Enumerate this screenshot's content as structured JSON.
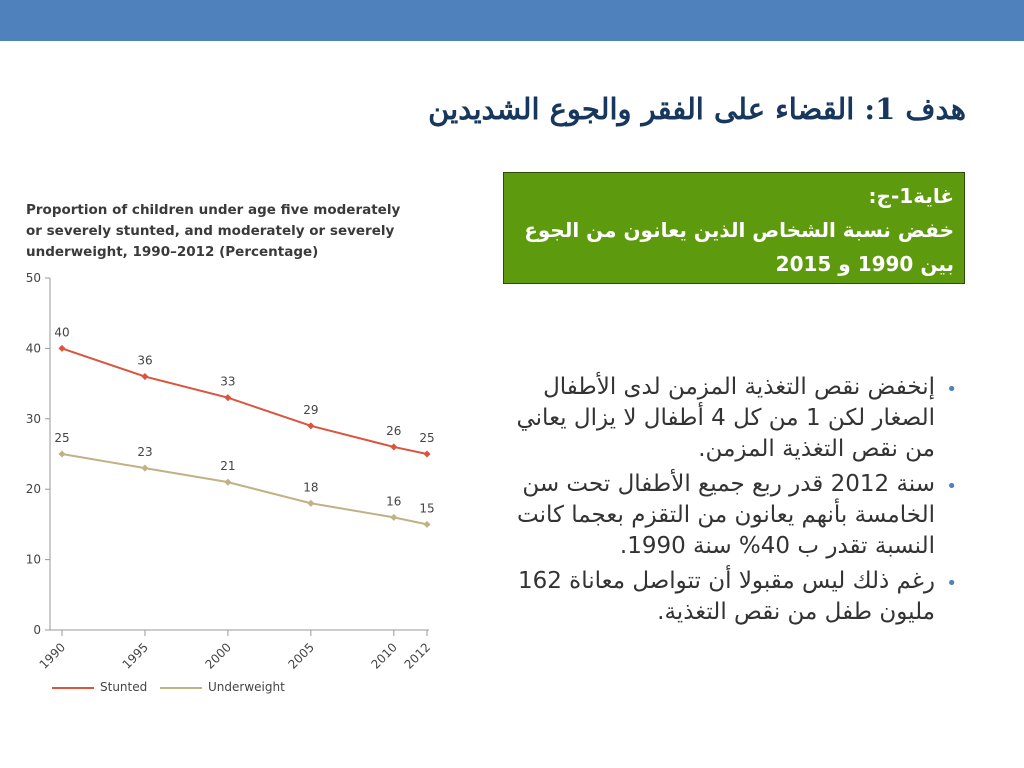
{
  "slide": {
    "title": "هدف 1: القضاء على الفقر والجوع الشديدين"
  },
  "target_box": {
    "line1": "غاية1-ج:",
    "line2": "خفض نسبة الشخاص الذين يعانون من الجوع",
    "line3": "بين 1990 و 2015"
  },
  "bullets": [
    "إنخفض نقص التغذية المزمن لدى الأطفال الصغار لكن 1 من كل 4 أطفال لا يزال يعاني من نقص التغذية المزمن.",
    "سنة 2012 قدر ربع جميع الأطفال تحت سن الخامسة بأنهم يعانون من التقزم بعجما كانت النسبة تقدر ب 40% سنة 1990.",
    "رغم ذلك ليس مقبولا أن تتواصل معاناة 162 مليون طفل من نقص التغذية."
  ],
  "colors": {
    "top_bar": "#4f81bd",
    "title_text": "#17375e",
    "target_box_bg": "#5e9a0e",
    "bullet_marker": "#4f81bd",
    "stunted": "#d9553b",
    "underweight": "#c2b185",
    "axis": "#999999"
  },
  "chart_data": {
    "type": "line",
    "title_lines": [
      "Proportion of children under age five moderately",
      "or severely stunted, and moderately or severely",
      "underweight, 1990–2012 (Percentage)"
    ],
    "x": [
      1990,
      1995,
      2000,
      2005,
      2010,
      2012
    ],
    "x_tick_labels": [
      "1990",
      "1995",
      "2000",
      "2005",
      "2010",
      "2012"
    ],
    "y_ticks": [
      0,
      10,
      20,
      30,
      40,
      50
    ],
    "ylim": [
      0,
      50
    ],
    "grid": false,
    "legend_position": "bottom-left",
    "series": [
      {
        "name": "Stunted",
        "values": [
          40,
          36,
          33,
          29,
          26,
          25
        ],
        "color": "#d9553b"
      },
      {
        "name": "Underweight",
        "values": [
          25,
          23,
          21,
          18,
          16,
          15
        ],
        "color": "#c2b185"
      }
    ]
  }
}
